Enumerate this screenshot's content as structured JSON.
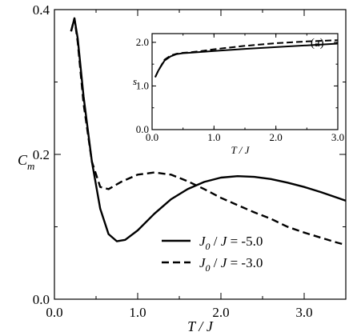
{
  "chart_data": [
    {
      "type": "line",
      "xlabel": "T / J",
      "ylabel": "C_m",
      "xlim": [
        0.0,
        3.5
      ],
      "ylim": [
        0.0,
        0.4
      ],
      "xticks": [
        {
          "value": 0.0,
          "label": "0.0"
        },
        {
          "value": 1.0,
          "label": "1.0"
        },
        {
          "value": 2.0,
          "label": "2.0"
        },
        {
          "value": 3.0,
          "label": "3.0"
        }
      ],
      "yticks": [
        {
          "value": 0.0,
          "label": "0.0"
        },
        {
          "value": 0.2,
          "label": "0.2"
        },
        {
          "value": 0.4,
          "label": "0.4"
        }
      ],
      "grid": false,
      "legend_position": "bottom-right",
      "series": [
        {
          "name": "J_0 / J = -5.0",
          "legend_label": "J0 / J = -5.0",
          "style": "solid",
          "color": "#000000",
          "x": [
            0.2,
            0.24,
            0.28,
            0.35,
            0.45,
            0.55,
            0.65,
            0.75,
            0.85,
            1.0,
            1.2,
            1.4,
            1.6,
            1.8,
            2.0,
            2.2,
            2.4,
            2.6,
            2.8,
            3.0,
            3.2,
            3.4,
            3.5
          ],
          "y": [
            0.37,
            0.388,
            0.36,
            0.28,
            0.19,
            0.125,
            0.09,
            0.08,
            0.082,
            0.095,
            0.118,
            0.138,
            0.152,
            0.162,
            0.168,
            0.17,
            0.169,
            0.166,
            0.161,
            0.155,
            0.148,
            0.14,
            0.136
          ]
        },
        {
          "name": "J_0 / J = -3.0",
          "legend_label": "J0 / J = -3.0",
          "style": "dashed",
          "color": "#000000",
          "x": [
            0.2,
            0.24,
            0.28,
            0.35,
            0.45,
            0.55,
            0.65,
            0.8,
            1.0,
            1.2,
            1.4,
            1.6,
            1.8,
            2.0,
            2.2,
            2.4,
            2.6,
            2.8,
            3.0,
            3.2,
            3.4,
            3.5
          ],
          "y": [
            0.37,
            0.388,
            0.355,
            0.27,
            0.19,
            0.155,
            0.152,
            0.162,
            0.172,
            0.175,
            0.172,
            0.163,
            0.152,
            0.14,
            0.13,
            0.12,
            0.111,
            0.1,
            0.092,
            0.085,
            0.078,
            0.075
          ]
        }
      ]
    },
    {
      "type": "line",
      "title": "(a)",
      "xlabel": "T / J",
      "ylabel": "s",
      "xlim": [
        0.0,
        3.0
      ],
      "ylim": [
        0.0,
        2.2
      ],
      "xticks": [
        {
          "value": 0.0,
          "label": "0.0"
        },
        {
          "value": 1.0,
          "label": "1.0"
        },
        {
          "value": 2.0,
          "label": "2.0"
        },
        {
          "value": 3.0,
          "label": "3.0"
        }
      ],
      "yticks": [
        {
          "value": 0.0,
          "label": "0.0"
        },
        {
          "value": 1.0,
          "label": "1.0"
        },
        {
          "value": 2.0,
          "label": "2.0"
        }
      ],
      "grid": false,
      "series": [
        {
          "style": "solid",
          "color": "#000000",
          "x": [
            0.05,
            0.1,
            0.2,
            0.3,
            0.4,
            0.5,
            0.6,
            0.8,
            1.0,
            1.5,
            2.0,
            2.5,
            3.0
          ],
          "y": [
            1.2,
            1.35,
            1.58,
            1.68,
            1.73,
            1.75,
            1.76,
            1.78,
            1.8,
            1.85,
            1.89,
            1.93,
            1.97
          ]
        },
        {
          "style": "dashed",
          "color": "#000000",
          "x": [
            0.05,
            0.1,
            0.2,
            0.3,
            0.4,
            0.5,
            0.6,
            0.8,
            1.0,
            1.5,
            2.0,
            2.5,
            3.0
          ],
          "y": [
            1.2,
            1.35,
            1.6,
            1.7,
            1.74,
            1.76,
            1.77,
            1.8,
            1.84,
            1.92,
            1.98,
            2.02,
            2.05
          ]
        }
      ]
    }
  ]
}
